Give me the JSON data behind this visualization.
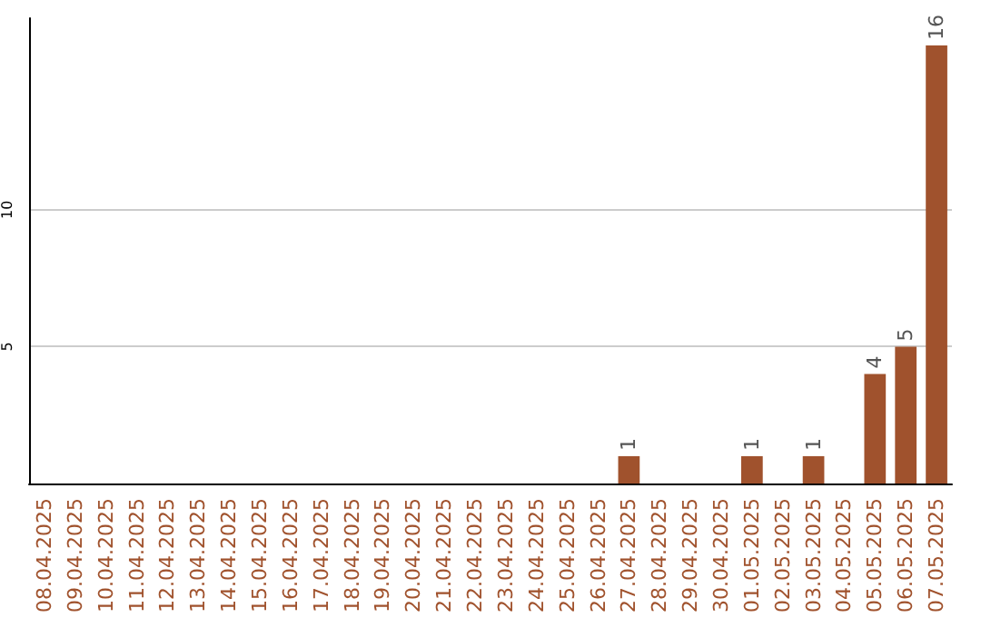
{
  "chart_data": {
    "type": "bar",
    "categories": [
      "08.04.2025",
      "09.04.2025",
      "10.04.2025",
      "11.04.2025",
      "12.04.2025",
      "13.04.2025",
      "14.04.2025",
      "15.04.2025",
      "16.04.2025",
      "17.04.2025",
      "18.04.2025",
      "19.04.2025",
      "20.04.2025",
      "21.04.2025",
      "22.04.2025",
      "23.04.2025",
      "24.04.2025",
      "25.04.2025",
      "26.04.2025",
      "27.04.2025",
      "28.04.2025",
      "29.04.2025",
      "30.04.2025",
      "01.05.2025",
      "02.05.2025",
      "03.05.2025",
      "04.05.2025",
      "05.05.2025",
      "06.05.2025",
      "07.05.2025"
    ],
    "values": [
      0,
      0,
      0,
      0,
      0,
      0,
      0,
      0,
      0,
      0,
      0,
      0,
      0,
      0,
      0,
      0,
      0,
      0,
      0,
      1,
      0,
      0,
      0,
      1,
      0,
      1,
      0,
      4,
      5,
      16
    ],
    "value_labels": [
      null,
      null,
      null,
      null,
      null,
      null,
      null,
      null,
      null,
      null,
      null,
      null,
      null,
      null,
      null,
      null,
      null,
      null,
      null,
      "1",
      null,
      null,
      null,
      "1",
      null,
      "1",
      null,
      "4",
      "5",
      "16"
    ],
    "color": "#a0522d",
    "ylim": [
      0,
      17
    ],
    "yticks": [
      5,
      10
    ],
    "grid": "y"
  }
}
